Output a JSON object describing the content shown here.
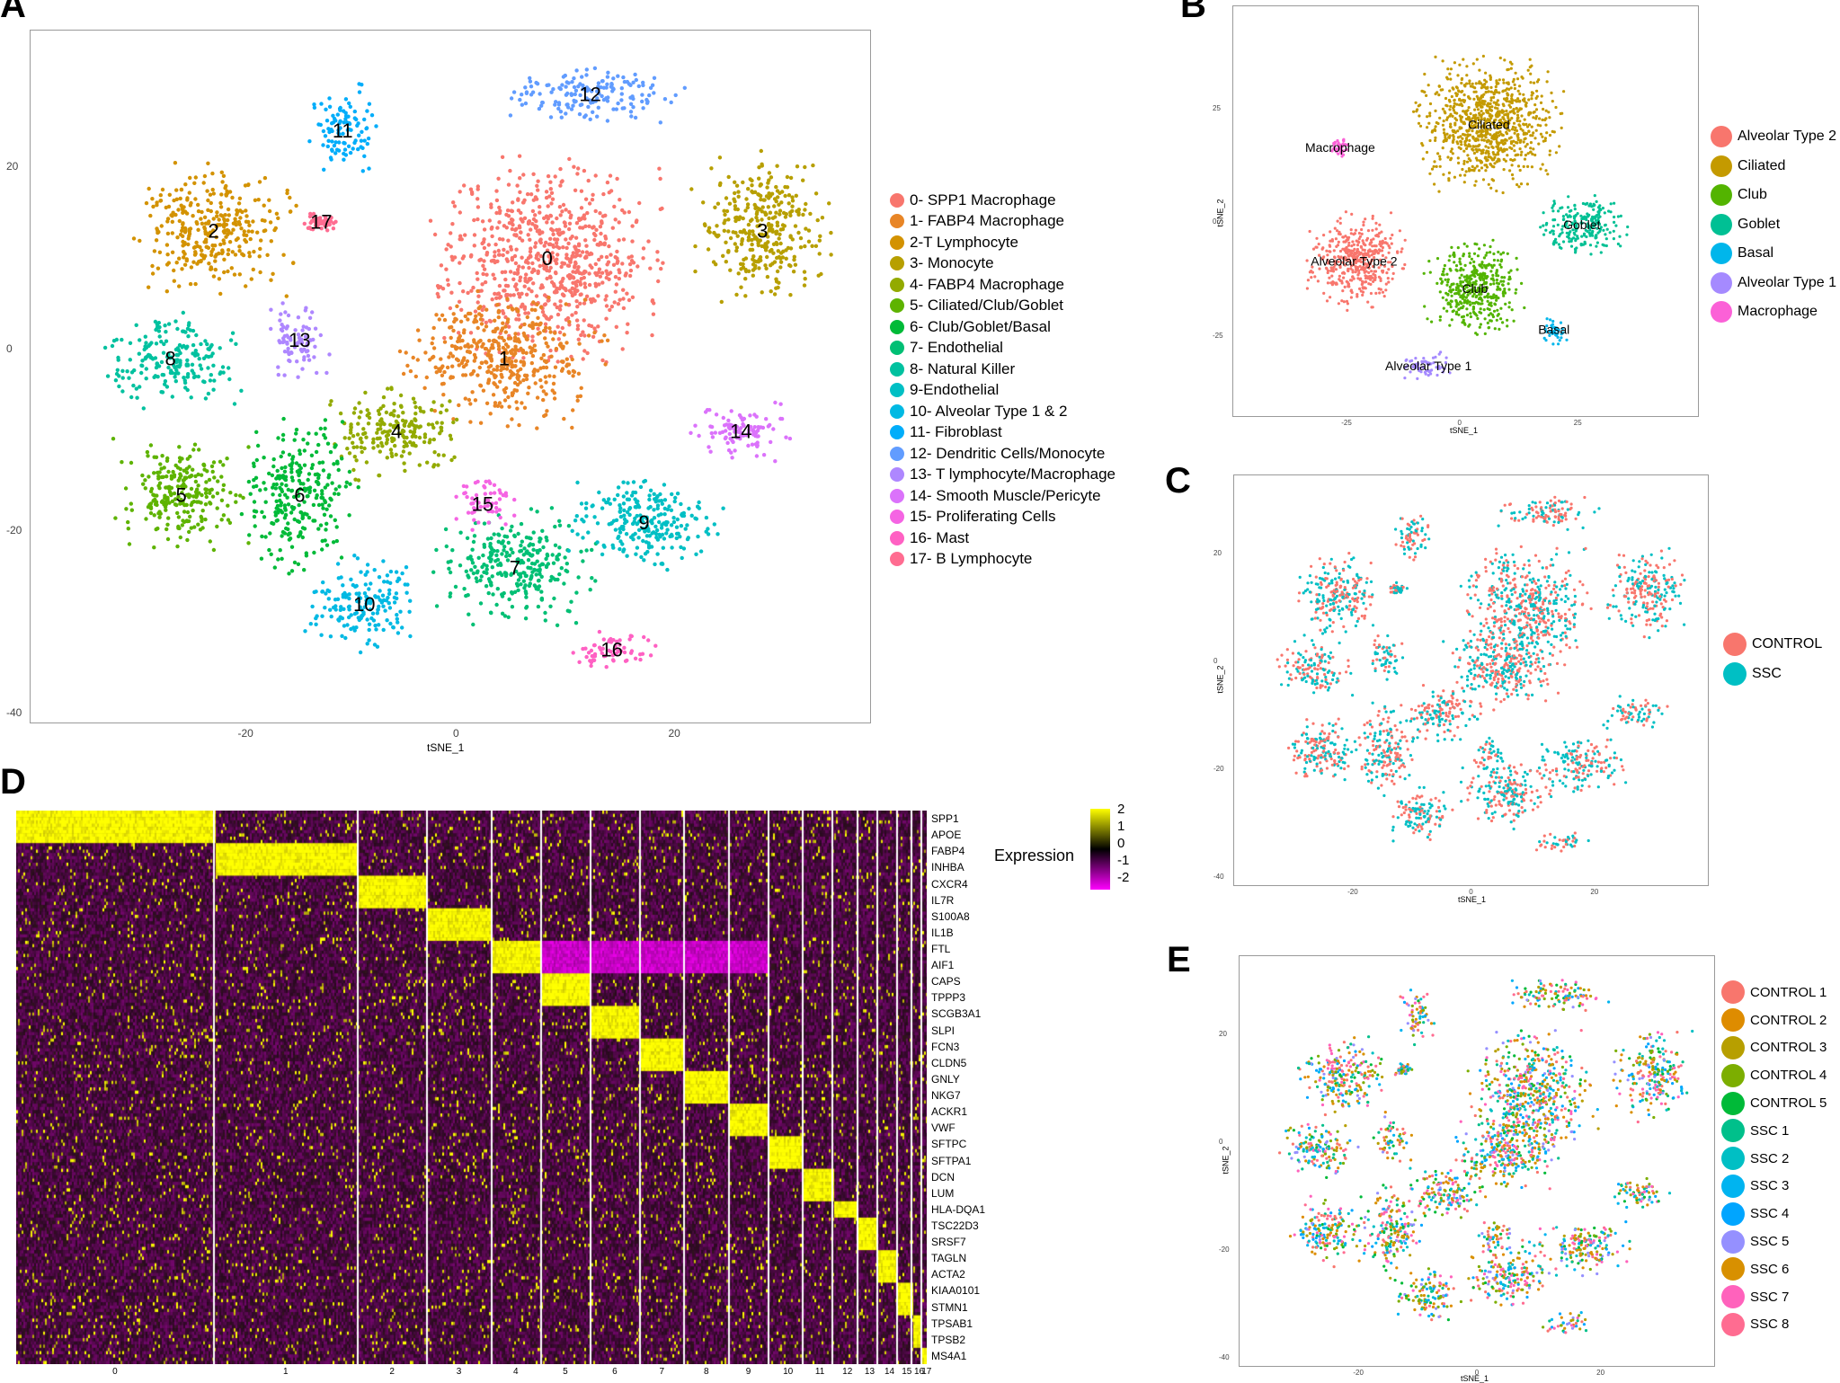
{
  "panels": {
    "A": {
      "letter": "A"
    },
    "B": {
      "letter": "B"
    },
    "C": {
      "letter": "C"
    },
    "D": {
      "letter": "D"
    },
    "E": {
      "letter": "E"
    }
  },
  "chart_data": [
    {
      "type": "scatter",
      "panel": "A",
      "xlabel": "tSNE_1",
      "ylabel": "",
      "xlim": [
        -40,
        38
      ],
      "ylim": [
        -41,
        35
      ],
      "xticks": [
        "-20",
        "0",
        "20"
      ],
      "yticks": [
        "20",
        "0",
        "-20",
        "-40"
      ],
      "legend_position": "right",
      "series": [
        {
          "name": "0- SPP1 Macrophage",
          "label": "0",
          "color": "#F8766D",
          "center": [
            8,
            10
          ],
          "spread": [
            10,
            11
          ]
        },
        {
          "name": "1- FABP4 Macrophage",
          "label": "1",
          "color": "#E88526",
          "center": [
            4,
            -1
          ],
          "spread": [
            9,
            7
          ]
        },
        {
          "name": "2-T Lymphocyte",
          "label": "2",
          "color": "#D39200",
          "center": [
            -23,
            13
          ],
          "spread": [
            7,
            7
          ]
        },
        {
          "name": "3- Monocyte",
          "label": "3",
          "color": "#B79F00",
          "center": [
            28,
            13
          ],
          "spread": [
            6,
            8
          ]
        },
        {
          "name": "4- FABP4 Macrophage",
          "label": "4",
          "color": "#93AA00",
          "center": [
            -6,
            -9
          ],
          "spread": [
            6,
            5
          ]
        },
        {
          "name": "5- Ciliated/Club/Goblet",
          "label": "5",
          "color": "#5EB300",
          "center": [
            -26,
            -16
          ],
          "spread": [
            6,
            6
          ]
        },
        {
          "name": "6- Club/Goblet/Basal",
          "label": "6",
          "color": "#00BA38",
          "center": [
            -15,
            -16
          ],
          "spread": [
            5,
            8
          ]
        },
        {
          "name": "7- Endothelial",
          "label": "7",
          "color": "#00BF74",
          "center": [
            5,
            -24
          ],
          "spread": [
            7,
            6
          ]
        },
        {
          "name": "8- Natural Killer",
          "label": "8",
          "color": "#00C19F",
          "center": [
            -27,
            -1
          ],
          "spread": [
            6,
            5
          ]
        },
        {
          "name": "9-Endothelial",
          "label": "9",
          "color": "#00BFC4",
          "center": [
            17,
            -19
          ],
          "spread": [
            7,
            5
          ]
        },
        {
          "name": "10- Alveolar Type 1 & 2",
          "label": "10",
          "color": "#00B9E3",
          "center": [
            -9,
            -28
          ],
          "spread": [
            5,
            5
          ]
        },
        {
          "name": "11- Fibroblast",
          "label": "11",
          "color": "#00ADFA",
          "center": [
            -11,
            24
          ],
          "spread": [
            3,
            5
          ]
        },
        {
          "name": "12- Dendritic Cells/Monocyte",
          "label": "12",
          "color": "#619CFF",
          "center": [
            12,
            28
          ],
          "spread": [
            8,
            3
          ]
        },
        {
          "name": "13- T lymphocyte/Macrophage",
          "label": "13",
          "color": "#AE87FF",
          "center": [
            -15,
            1
          ],
          "spread": [
            3,
            4
          ]
        },
        {
          "name": "14- Smooth Muscle/Pericyte",
          "label": "14",
          "color": "#DB72FB",
          "center": [
            26,
            -9
          ],
          "spread": [
            5,
            3
          ]
        },
        {
          "name": "15- Proliferating Cells",
          "label": "15",
          "color": "#F564E3",
          "center": [
            2,
            -17
          ],
          "spread": [
            3,
            3
          ]
        },
        {
          "name": "16- Mast",
          "label": "16",
          "color": "#FF61C3",
          "center": [
            14,
            -33
          ],
          "spread": [
            4,
            2
          ]
        },
        {
          "name": "17- B Lymphocyte",
          "label": "17",
          "color": "#FF6C91",
          "center": [
            -13,
            14
          ],
          "spread": [
            1.5,
            1
          ]
        }
      ]
    },
    {
      "type": "scatter",
      "panel": "B",
      "xlabel": "tSNE_1",
      "ylabel": "tSNE_2",
      "xlim": [
        -50,
        50
      ],
      "ylim": [
        -42,
        48
      ],
      "xticks": [
        "-25",
        "0",
        "25"
      ],
      "yticks": [
        "25",
        "0",
        "-25"
      ],
      "legend_position": "right",
      "series": [
        {
          "name": "Alveolar Type 2",
          "label": "Alveolar Type 2",
          "color": "#F8766D",
          "center": [
            -24,
            -8
          ],
          "spread": [
            10,
            10
          ]
        },
        {
          "name": "Ciliated",
          "label": "Ciliated",
          "color": "#C49A00",
          "center": [
            5,
            22
          ],
          "spread": [
            15,
            14
          ]
        },
        {
          "name": "Club",
          "label": "Club",
          "color": "#53B400",
          "center": [
            2,
            -14
          ],
          "spread": [
            10,
            10
          ]
        },
        {
          "name": "Goblet",
          "label": "Goblet",
          "color": "#00C094",
          "center": [
            25,
            0
          ],
          "spread": [
            9,
            6
          ]
        },
        {
          "name": "Basal",
          "label": "Basal",
          "color": "#00B6EB",
          "center": [
            19,
            -23
          ],
          "spread": [
            3,
            3
          ]
        },
        {
          "name": "Alveolar Type 1",
          "label": "Alveolar Type 1",
          "color": "#A58AFF",
          "center": [
            -8,
            -31
          ],
          "spread": [
            5,
            3
          ]
        },
        {
          "name": "Macrophage",
          "label": "Macrophage",
          "color": "#FB61D7",
          "center": [
            -27,
            17
          ],
          "spread": [
            2,
            2
          ]
        }
      ]
    },
    {
      "type": "scatter",
      "panel": "C",
      "xlabel": "tSNE_1",
      "ylabel": "tSNE_2",
      "xlim": [
        -40,
        38
      ],
      "ylim": [
        -41,
        35
      ],
      "xticks": [
        "-20",
        "0",
        "20"
      ],
      "yticks": [
        "20",
        "0",
        "-20",
        "-40"
      ],
      "legend_position": "right",
      "series": [
        {
          "name": "CONTROL",
          "color": "#F8766D"
        },
        {
          "name": "SSC",
          "color": "#00BFC4"
        }
      ]
    },
    {
      "type": "heatmap",
      "panel": "D",
      "legend_title": "Expression",
      "legend_ticks": [
        "2",
        "1",
        "0",
        "-1",
        "-2"
      ],
      "color_scale": [
        "#FF00FF",
        "#000000",
        "#FFFF00"
      ],
      "x_clusters": [
        "0",
        "1",
        "2",
        "3",
        "4",
        "5",
        "6",
        "7",
        "8",
        "9",
        "10",
        "11",
        "12",
        "13",
        "14",
        "15",
        "16",
        "17"
      ],
      "cluster_widths": [
        20,
        14.5,
        7,
        6.5,
        5,
        5,
        5,
        4.5,
        4.5,
        4,
        3.5,
        3,
        2.5,
        2,
        2,
        1.5,
        1,
        0.5
      ],
      "genes": [
        "SPP1",
        "APOE",
        "FABP4",
        "INHBA",
        "CXCR4",
        "IL7R",
        "S100A8",
        "IL1B",
        "FTL",
        "AIF1",
        "CAPS",
        "TPPP3",
        "SCGB3A1",
        "SLPI",
        "FCN3",
        "CLDN5",
        "GNLY",
        "NKG7",
        "ACKR1",
        "VWF",
        "SFTPC",
        "SFTPA1",
        "DCN",
        "LUM",
        "HLA-DQA1",
        "TSC22D3",
        "SRSF7",
        "TAGLN",
        "ACTA2",
        "KIAA0101",
        "STMN1",
        "TPSAB1",
        "TPSB2",
        "MS4A1"
      ],
      "gene_cluster": [
        0,
        0,
        1,
        1,
        2,
        2,
        3,
        3,
        4,
        4,
        5,
        5,
        6,
        6,
        7,
        7,
        8,
        8,
        9,
        9,
        10,
        10,
        11,
        11,
        12,
        13,
        13,
        14,
        14,
        15,
        15,
        16,
        16,
        17
      ]
    },
    {
      "type": "scatter",
      "panel": "E",
      "xlabel": "tSNE_1",
      "ylabel": "tSNE_2",
      "xlim": [
        -40,
        38
      ],
      "ylim": [
        -41,
        35
      ],
      "xticks": [
        "-20",
        "0",
        "20"
      ],
      "yticks": [
        "20",
        "0",
        "-20",
        "-40"
      ],
      "legend_position": "right",
      "series": [
        {
          "name": "CONTROL 1",
          "color": "#F8766D"
        },
        {
          "name": "CONTROL 2",
          "color": "#DE8C00"
        },
        {
          "name": "CONTROL 3",
          "color": "#B79F00"
        },
        {
          "name": "CONTROL 4",
          "color": "#7CAE00"
        },
        {
          "name": "CONTROL 5",
          "color": "#00BA38"
        },
        {
          "name": "SSC 1",
          "color": "#00C08B"
        },
        {
          "name": "SSC 2",
          "color": "#00BFC4"
        },
        {
          "name": "SSC 3",
          "color": "#00B4F0"
        },
        {
          "name": "SSC 4",
          "color": "#00A5FF"
        },
        {
          "name": "SSC 5",
          "color": "#9590FF"
        },
        {
          "name": "SSC 6",
          "color": "#D89000"
        },
        {
          "name": "SSC 7",
          "color": "#FF62BC"
        },
        {
          "name": "SSC 8",
          "color": "#FF6C91"
        }
      ]
    }
  ]
}
